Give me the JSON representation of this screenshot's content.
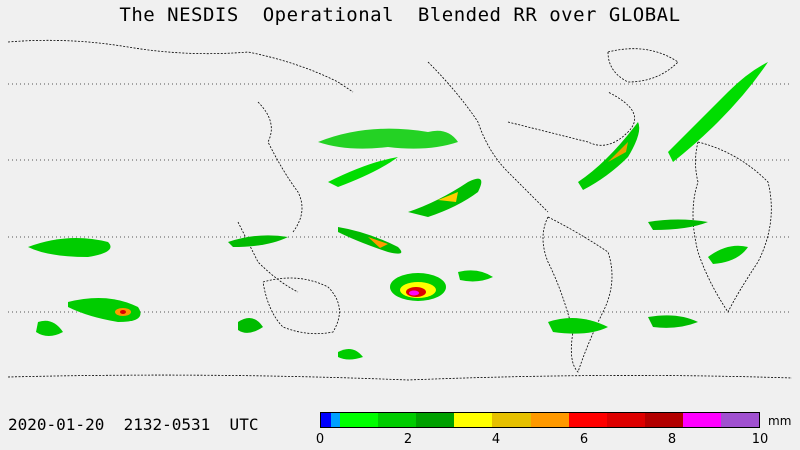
{
  "title": "The NESDIS  Operational  Blended RR over GLOBAL",
  "timestamp": "2020-01-20  2132-0531  UTC",
  "legend": {
    "unit": "mm",
    "ticks": [
      "0",
      "2",
      "4",
      "6",
      "8",
      "10"
    ],
    "colors": [
      "#0000ff",
      "#00a0ff",
      "#00ff00",
      "#00cc00",
      "#00a000",
      "#ffff00",
      "#e6c000",
      "#ff9900",
      "#ff0000",
      "#dd0000",
      "#b30000",
      "#ff00ff",
      "#a050d0"
    ]
  },
  "map": {
    "background": "#f0f0f0",
    "coastline_color": "#000000",
    "gridline_color": "#555555"
  }
}
